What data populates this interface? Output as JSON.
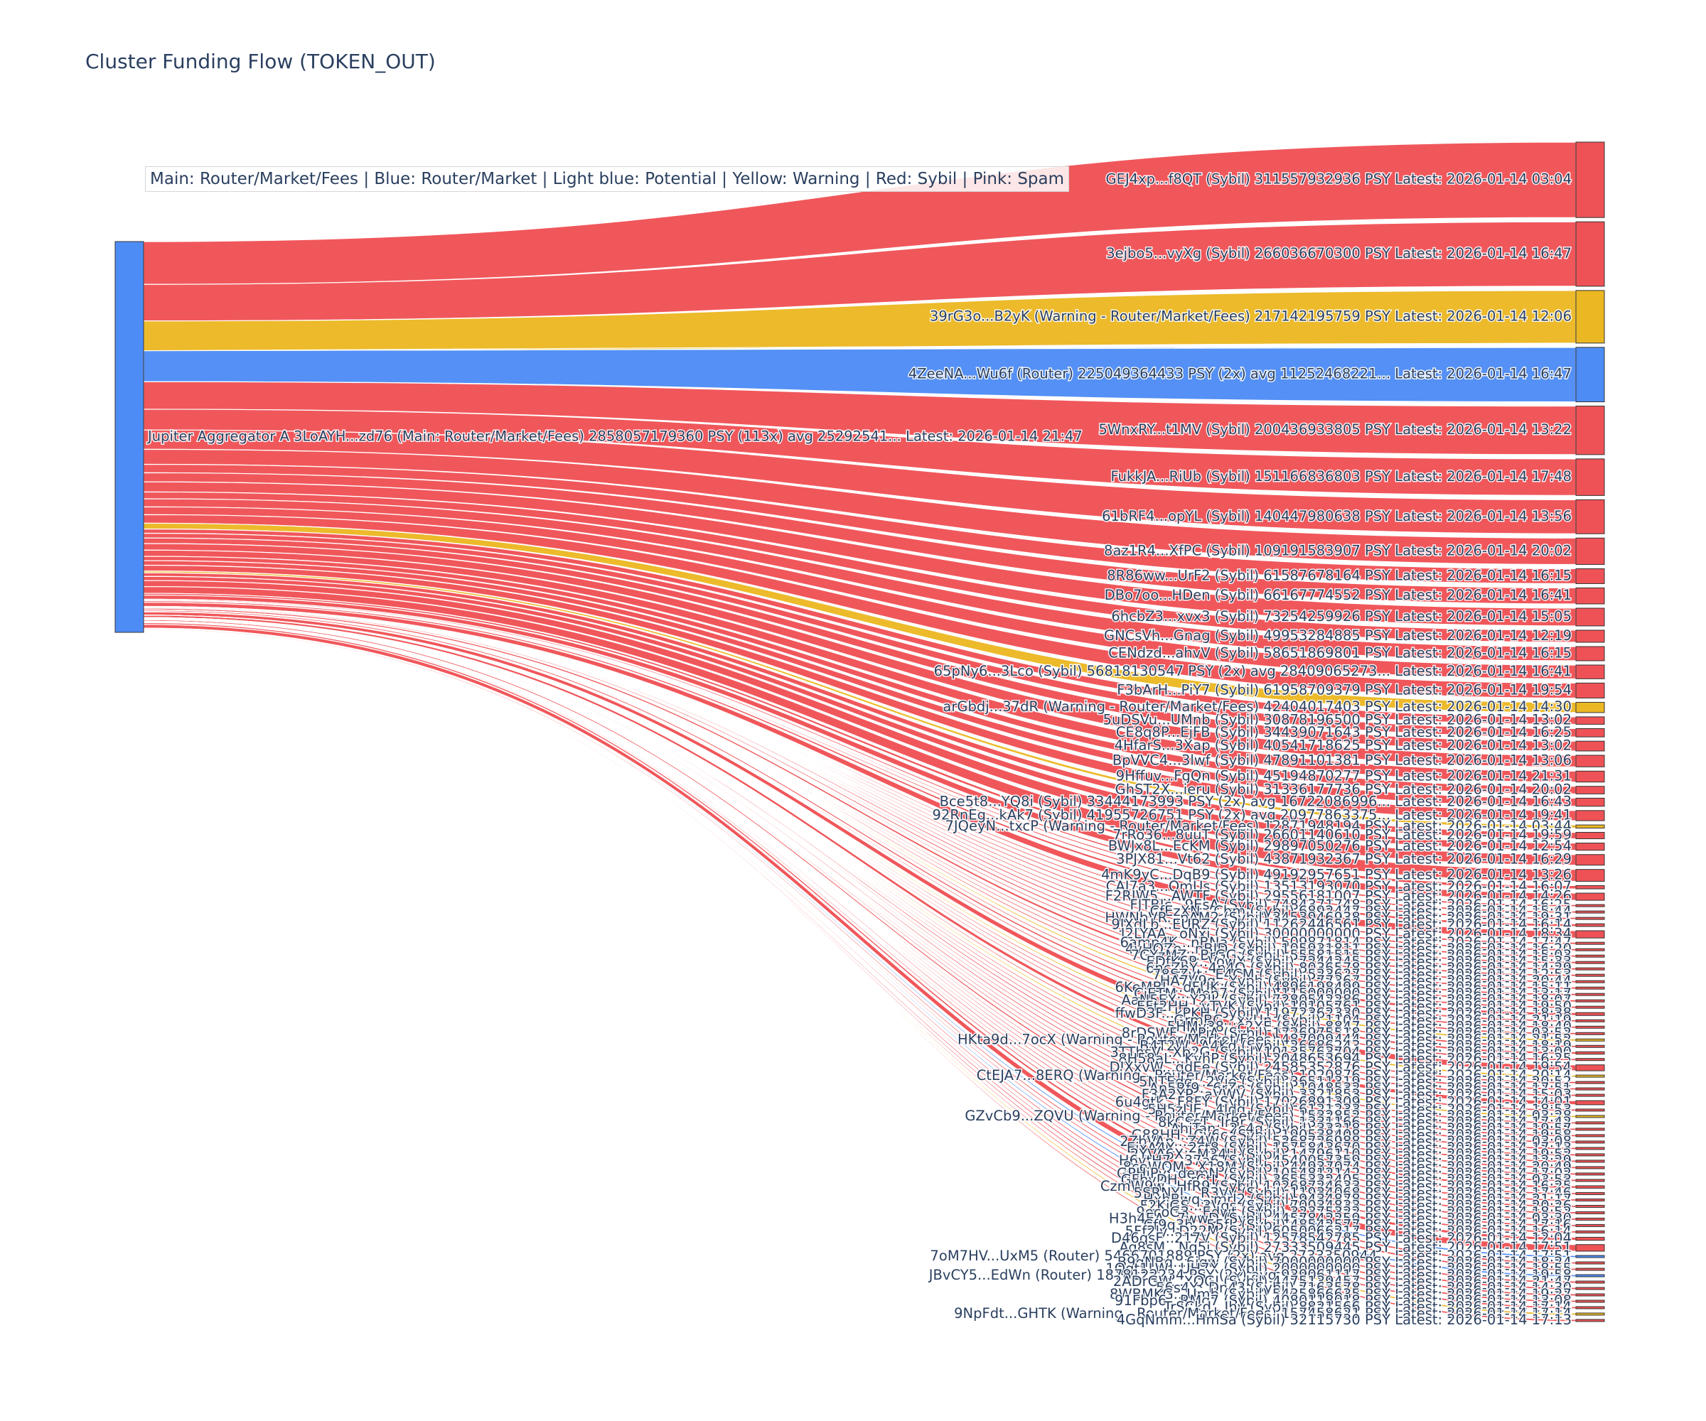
{
  "colors": {
    "sybil": "#ef5256",
    "warning": "#ebb824",
    "router": "#4e8cf5",
    "source": "#4e8cf5",
    "node_stroke": "#333333"
  },
  "chart_data": {
    "type": "sankey",
    "title": "Cluster Funding Flow (TOKEN_OUT)",
    "legend": "Main: Router/Market/Fees  |  Blue: Router/Market | Light blue: Potential | Yellow: Warning | Red: Sybil | Pink: Spam",
    "source": {
      "label": "Jupiter Aggregator A 3LoAYH...zd76 (Main: Router/Market/Fees) 2858057179360 PSY (113x) avg 25292541... Latest: 2026-01-14 21:47"
    },
    "targets": [
      {
        "label": "GEJ4xp...f8QT (Sybil) 311557932936 PSY Latest: 2026-01-14 03:04",
        "value": 311557932936,
        "kind": "sybil"
      },
      {
        "label": "3ejbo5...vyXg (Sybil) 266036670300 PSY Latest: 2026-01-14 16:47",
        "value": 266036670300,
        "kind": "sybil"
      },
      {
        "label": "39rG3o...B2yK (Warning - Router/Market/Fees) 217142195759 PSY Latest: 2026-01-14 12:06",
        "value": 217142195759,
        "kind": "warning"
      },
      {
        "label": "4ZeeNA...Wu6f (Router) 225049364433 PSY (2x) avg 11252468221... Latest: 2026-01-14 16:47",
        "value": 225049364433,
        "kind": "router"
      },
      {
        "label": "5WnxRY...t1MV (Sybil) 200436933805 PSY Latest: 2026-01-14 13:22",
        "value": 200436933805,
        "kind": "sybil"
      },
      {
        "label": "FukkJA...RiUb (Sybil) 151166836803 PSY Latest: 2026-01-14 17:48",
        "value": 151166836803,
        "kind": "sybil"
      },
      {
        "label": "61bRF4...opYL (Sybil) 140447980638 PSY Latest: 2026-01-14 13:56",
        "value": 140447980638,
        "kind": "sybil"
      },
      {
        "label": "8az1R4...XfPC (Sybil) 109191583907 PSY Latest: 2026-01-14 20:02",
        "value": 109191583907,
        "kind": "sybil"
      },
      {
        "label": "8R86ww...UrF2 (Sybil) 61587678164 PSY Latest: 2026-01-14 16:15",
        "value": 61587678164,
        "kind": "sybil"
      },
      {
        "label": "DBo7oo...HDen (Sybil) 66167774552 PSY Latest: 2026-01-14 16:41",
        "value": 66167774552,
        "kind": "sybil"
      },
      {
        "label": "6hcbZ3...xvx3 (Sybil) 73254259926 PSY Latest: 2026-01-14 15:05",
        "value": 73254259926,
        "kind": "sybil"
      },
      {
        "label": "GNCsVh...Gnag (Sybil) 49953284885 PSY Latest: 2026-01-14 12:19",
        "value": 49953284885,
        "kind": "sybil"
      },
      {
        "label": "CENdzd...ahvV (Sybil) 58651869801 PSY Latest: 2026-01-14 16:15",
        "value": 58651869801,
        "kind": "sybil"
      },
      {
        "label": "65pNy6...3Lco (Sybil) 56818130547 PSY (2x) avg 28409065273... Latest: 2026-01-14 16:41",
        "value": 56818130547,
        "kind": "sybil"
      },
      {
        "label": "F3bArH...PiY7 (Sybil) 61958709379 PSY Latest: 2026-01-14 19:54",
        "value": 61958709379,
        "kind": "sybil"
      },
      {
        "label": "arGbdj...37dR (Warning - Router/Market/Fees) 42404017403 PSY Latest: 2026-01-14 14:30",
        "value": 42404017403,
        "kind": "warning"
      },
      {
        "label": "5uDSVu...UMnb (Sybil) 30878196500 PSY Latest: 2026-01-14 13:02",
        "value": 30878196500,
        "kind": "sybil"
      },
      {
        "label": "CE8q8P...EjFB (Sybil) 34439071643 PSY Latest: 2026-01-14 16:25",
        "value": 34439071643,
        "kind": "sybil"
      },
      {
        "label": "4HfarS...3Xap (Sybil) 40541718625 PSY Latest: 2026-01-14 13:02",
        "value": 40541718625,
        "kind": "sybil"
      },
      {
        "label": "BpVVC4...3lwf (Sybil) 47891101381 PSY Latest: 2026-01-14 13:06",
        "value": 47891101381,
        "kind": "sybil"
      },
      {
        "label": "9Hffuv...FgQn (Sybil) 45194870277 PSY Latest: 2026-01-14 21:31",
        "value": 45194870277,
        "kind": "sybil"
      },
      {
        "label": "GhST2X...ieru (Sybil) 31336177736 PSY Latest: 2026-01-14 20:02",
        "value": 31336177736,
        "kind": "sybil"
      },
      {
        "label": "Bce5t8...YQ8i (Sybil) 33444173993 PSY (2x) avg 16722086996... Latest: 2026-01-14 16:43",
        "value": 33444173993,
        "kind": "sybil"
      },
      {
        "label": "92RnEg...kAk7 (Sybil) 41955726751 PSY (2x) avg 20977863375... Latest: 2026-01-14 19:41",
        "value": 41955726751,
        "kind": "sybil"
      },
      {
        "label": "7JQeyN...txcP (Warning - Router/Market/Fees) 12871948194 PSY Latest: 2026-01-14 03:44",
        "value": 12871948194,
        "kind": "warning"
      },
      {
        "label": "7rRo36...8uuT (Sybil) 26601140610 PSY Latest: 2026-01-14 19:59",
        "value": 26601140610,
        "kind": "sybil"
      },
      {
        "label": "BWJx8L...EcKM (Sybil) 29897050276 PSY Latest: 2026-01-14 12:54",
        "value": 29897050276,
        "kind": "sybil"
      },
      {
        "label": "3PJX81...Vt62 (Sybil) 43871932367 PSY Latest: 2026-01-14 16:29",
        "value": 43871932367,
        "kind": "sybil"
      },
      {
        "label": "4mK9yC...DqB9 (Sybil) 49192957651 PSY Latest: 2026-01-14 13:26",
        "value": 49192957651,
        "kind": "sybil"
      },
      {
        "label": "CAJ7a3...OmUs (Sybil) 13513193070 PSY Latest: 2026-01-14 16:07",
        "value": 13513193070,
        "kind": "sybil"
      },
      {
        "label": "F2RJW5...AWTF (Sybil) 29556181007 PSY Latest: 2026-01-14 14:26",
        "value": 29556181007,
        "kind": "sybil"
      },
      {
        "label": "FJTBJc...9EsA (Sybil) 7484371748 PSY Latest: 2026-01-14 16:25",
        "value": 7484371748,
        "kind": "sybil"
      },
      {
        "label": "CfEzXN...Cbm (Sybil) 6892447 PSY Latest: 2026-01-14 15:44",
        "value": 6892447,
        "kind": "sybil"
      },
      {
        "label": "HWNbVR...pAM2 (Sybil) 3453946938 PSY Latest: 2026-01-14 19:31",
        "value": 3453946938,
        "kind": "sybil"
      },
      {
        "label": "9JXdLb...EURZ (Sybil) 11262446561 PSY Latest: 2026-01-14 16:14",
        "value": 11262446561,
        "kind": "sybil"
      },
      {
        "label": "J2LYAA...oNxi (Sybil) 30000000000 PSY Latest: 2026-01-14 18:34",
        "value": 30000000000,
        "kind": "sybil"
      },
      {
        "label": "6amp4K...nBNa (Sybil) 509871814 PSY Latest: 2026-01-14 17:47",
        "value": 509871814,
        "kind": "sybil"
      },
      {
        "label": "4vHQZe...nBJD (Sybil) 105931811 PSY Latest: 2026-01-14 16:20",
        "value": 105931811,
        "kind": "sybil"
      },
      {
        "label": "7GYzMZ...BrGG (Sybil) 55581515 PSY Latest: 2026-01-14 15:03",
        "value": 55581515,
        "kind": "sybil"
      },
      {
        "label": "EDfK6P...VowX (Sybil) 7244245 PSY Latest: 2026-01-14 15:33",
        "value": 7244245,
        "kind": "sybil"
      },
      {
        "label": "6ncZbY...4n4Q (Sybil) 8036578 PSY Latest: 2026-01-14 14:29",
        "value": 8036578,
        "kind": "sybil"
      },
      {
        "label": "78SZyt...E4CM (Sybil) 523627 PSY Latest: 2026-01-14 12:53",
        "value": 523627,
        "kind": "sybil"
      },
      {
        "label": "HA7V9g...Yvph (Sybil) 77367 PSY Latest: 2026-01-14 20:44",
        "value": 77367,
        "kind": "sybil"
      },
      {
        "label": "6KeMBL...dFUK (Sybil) 4896198499 PSY Latest: 2026-01-14 15:11",
        "value": 4896198499,
        "kind": "sybil"
      },
      {
        "label": "CjETM...Mep7 (Sybil) 115000000 PSY Latest: 2026-01-14 13:17",
        "value": 115000000,
        "kind": "sybil"
      },
      {
        "label": "AaN5EX...Y2JL (Sybil) 7280542286 PSY Latest: 2026-01-14 18:07",
        "value": 7280542286,
        "kind": "sybil"
      },
      {
        "label": "EFt2HH...yTVK (Sybil) 10105761 PSY Latest: 2026-01-14 19:50",
        "value": 10105761,
        "kind": "sybil"
      },
      {
        "label": "ffwD3F...kPKH (Sybil) 11972362330 PSY Latest: 2026-01-14 18:38",
        "value": 11972362330,
        "kind": "sybil"
      },
      {
        "label": "GrmBG...xxUn (Sybil) 1104 PSY Latest: 2026-01-14 21:19",
        "value": 1104,
        "kind": "sybil"
      },
      {
        "label": "5HMv38...c2XE (Sybil) 8847 PSY Latest: 2026-01-14 18:40",
        "value": 8847,
        "kind": "sybil"
      },
      {
        "label": "8rDSWF...APiA (Sybil) 1726975518 PSY Latest: 2026-01-14 03:52",
        "value": 1726975518,
        "kind": "sybil"
      },
      {
        "label": "HKta9d...7ocX (Warning - Router/Market/Fees) 487009444 PSY Latest: 2026-01-14 21:52",
        "value": 487009444,
        "kind": "warning"
      },
      {
        "label": "B4T2W...A4Kd (Sybil) 26686243 PSY Latest: 2026-01-14 18:19",
        "value": 26686243,
        "kind": "sybil"
      },
      {
        "label": "3TThsV...Xb2G (Sybil) 10135763704 PSY Latest: 2026-01-14 13:00",
        "value": 10135763704,
        "kind": "sybil"
      },
      {
        "label": "8H58aL...KvhP (Sybil) 2048653694 PSY Latest: 2026-01-14 16:25",
        "value": 2048653694,
        "kind": "sybil"
      },
      {
        "label": "DJXxvW...gdEe (Sybil) 24585352876 PSY Latest: 2026-01-14 19:54",
        "value": 24585352876,
        "kind": "sybil"
      },
      {
        "label": "CtEJA7...8ERQ (Warning - Router/Market/Fees) 1020876 PSY Latest: 2026-01-14 20:14",
        "value": 1020876,
        "kind": "warning"
      },
      {
        "label": "5NTEdq...2Vje (Sybil) 36511319 PSY Latest: 2026-01-14 20:52",
        "value": 36511319,
        "kind": "sybil"
      },
      {
        "label": "An5Rf9...6rZn (Sybil) 1048532 PSY Latest: 2026-01-14 17:51",
        "value": 1048532,
        "kind": "sybil"
      },
      {
        "label": "F3A2YP...aVWV (Sybil) 3321853 PSY Latest: 2026-01-14 15:03",
        "value": 3321853,
        "kind": "sybil"
      },
      {
        "label": "6u4gtk...F8FY (Sybil) 17026891309 PSY Latest: 2026-01-14 14:01",
        "value": 17026891309,
        "kind": "sybil"
      },
      {
        "label": "5H5zUE...4Jdq (Sybil) 6121233 PSY Latest: 2026-01-14 18:53",
        "value": 6121233,
        "kind": "sybil"
      },
      {
        "label": "GZvCb9...ZQVU (Warning - Router/Market/Fees) 1532852 PSY Latest: 2026-01-14 03:28",
        "value": 1532852,
        "kind": "warning"
      },
      {
        "label": "8kCSsT...IrBr (Sybil) 1331166 PSY Latest: 2026-01-14 17:42",
        "value": 1331166,
        "kind": "sybil"
      },
      {
        "label": "AhjTan...2c4g (Sybil) 33218 PSY Latest: 2026-01-14 19:57",
        "value": 33218,
        "kind": "sybil"
      },
      {
        "label": "G88HH...Cv6c (Sybil) 190538408 PSY Latest: 2026-01-14 19:58",
        "value": 190538408,
        "kind": "sybil"
      },
      {
        "label": "2ZbVAp...Z4W (Sybil) 5268726988 PSY Latest: 2026-01-14 03:08",
        "value": 5268726988,
        "kind": "sybil"
      },
      {
        "label": "EjxA4X...2ct8 (Sybil) 1575843670 PSY Latest: 2026-01-14 17:13",
        "value": 1575843670,
        "kind": "sybil"
      },
      {
        "label": "2YVA6X...M34U (Sybil) 14796110 PSY Latest: 2026-01-14 19:52",
        "value": 14796110,
        "kind": "sybil"
      },
      {
        "label": "H6ytH7...37a6 (Sybil) 4540057359 PSY Latest: 2026-01-14 12:29",
        "value": 4540057359,
        "kind": "sybil"
      },
      {
        "label": "8ceWQM...X18M (Sybil) 44937074 PSY Latest: 2026-01-14 20:49",
        "value": 44937074,
        "kind": "sybil"
      },
      {
        "label": "GPHiPy...demN (Sybil) 1054812142 PSY Latest: 2026-01-14 17:02",
        "value": 1054812142,
        "kind": "sybil"
      },
      {
        "label": "GFhyDH...rCtL (Sybil) 3655332405 PSY Latest: 2026-01-14 03:53",
        "value": 3655332405,
        "kind": "sybil"
      },
      {
        "label": "CzmW9w...HfR9 (Sybil) 10268724633 PSY Latest: 2026-01-14 16:25",
        "value": 10268724633,
        "kind": "sybil"
      },
      {
        "label": "5SRNYL...R3Vv (Sybil) 11934068 PSY Latest: 2026-01-14 17:46",
        "value": 11934068,
        "kind": "sybil"
      },
      {
        "label": "HxhBwq...mrJ2 (Sybil) 9434878 PSY Latest: 2026-01-14 21:17",
        "value": 9434878,
        "kind": "sybil"
      },
      {
        "label": "F2KiGS...3Vgs (Sybil) 70034833 PSY Latest: 2026-01-14 20:26",
        "value": 70034833,
        "kind": "sybil"
      },
      {
        "label": "9ecoG3...Edwt (Sybil) 32375322 PSY Latest: 2026-01-14 18:52",
        "value": 32375322,
        "kind": "sybil"
      },
      {
        "label": "H3h4EA...7wwD (Sybil) 4457842259 PSY Latest: 2026-01-14 03:30",
        "value": 4457842259,
        "kind": "sybil"
      },
      {
        "label": "Cf9q3h...55fL (Sybil) 48542577 PSY Latest: 2026-01-14 17:16",
        "value": 48542577,
        "kind": "sybil"
      },
      {
        "label": "5Ff2ly...D22M (Sybil) 6050066217 PSY Latest: 2026-01-14 16:14",
        "value": 6050066217,
        "kind": "sybil"
      },
      {
        "label": "D46qsF...217V (Sybil) 12578542785 PSY Latest: 2026-01-14 12:04",
        "value": 12578542785,
        "kind": "sybil"
      },
      {
        "label": "Aq8sM...Nq5j (Sybil) 27333509445 PSY Latest: 2026-01-14 17:51",
        "value": 27333509445,
        "kind": "sybil"
      },
      {
        "label": "7oM7HV...UxM5 (Router) 5466701889 PSY (2x) avg 2733350944... Latest: 2026-01-14 17:51",
        "value": 5466701889,
        "kind": "router"
      },
      {
        "label": "B9qNBq...6igw (Sybil) 7000000000 PSY Latest: 2026-01-14 18:24",
        "value": 7000000000,
        "kind": "sybil"
      },
      {
        "label": "1Qgt1LW...UH7X (Sybil) 2000000000 PSY Latest: 2026-01-14 18:55",
        "value": 2000000000,
        "kind": "sybil"
      },
      {
        "label": "JBvCY5...EdWn (Router) 1878122234 PSY (2x) avg 939061117 PSY Latest: 2026-01-14 19:58",
        "value": 1878122234,
        "kind": "router"
      },
      {
        "label": "2ADrGW...XQGJ (Sybil) 4475139457 PSY Latest: 2026-01-14 21:47",
        "value": 4475139457,
        "kind": "sybil"
      },
      {
        "label": "56s4Y...Dn43 (Sybil) 7163578 PSY Latest: 2026-01-14 14:30",
        "value": 7163578,
        "kind": "sybil"
      },
      {
        "label": "8WBMKG...Umb (Sybil) 5435866635 PSY Latest: 2026-01-14 19:27",
        "value": 5435866635,
        "kind": "sybil"
      },
      {
        "label": "91Fbp6...RMq7 (Sybil) 4080118018 PSY Latest: 2026-01-14 13:08",
        "value": 4080118018,
        "kind": "sybil"
      },
      {
        "label": "TrSCkd...Jhy (Sybil) 8821566 PSY Latest: 2026-01-14 17:14",
        "value": 8821566,
        "kind": "sybil"
      },
      {
        "label": "9NpFdt...GHTK (Warning - Router/Market/Fees) 157458621 PSY Latest: 2026-01-14 17:14",
        "value": 157458621,
        "kind": "warning"
      },
      {
        "label": "4GqNmm...HmSa (Sybil) 32115730 PSY Latest: 2026-01-14 17:13",
        "value": 32115730,
        "kind": "sybil"
      }
    ]
  }
}
